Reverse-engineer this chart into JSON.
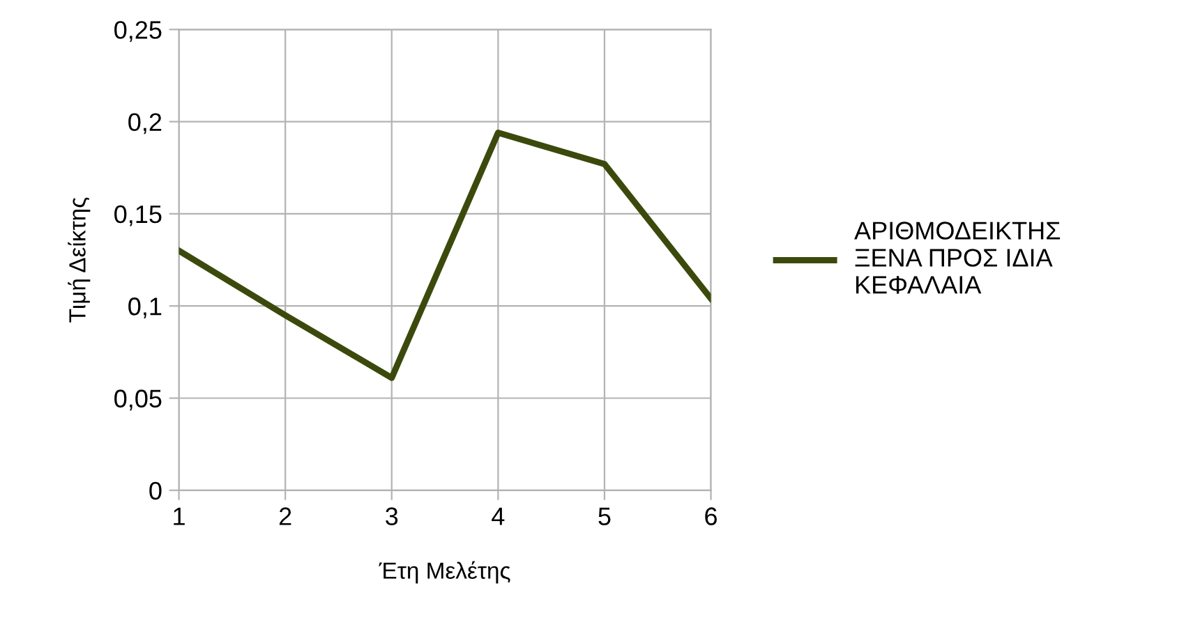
{
  "chart_data": {
    "type": "line",
    "xlabel": "Έτη Μελέτης",
    "ylabel": "Τιμή Δείκτης",
    "x": [
      1,
      2,
      3,
      4,
      5,
      6
    ],
    "series": [
      {
        "name": "ΑΡΙΘΜΟΔΕΙΚΤΗΣ\nΞΕΝΑ ΠΡΟΣ ΙΔΙΑ\nΚΕΦΑΛΑΙΑ",
        "color": "#3b4a0c",
        "values": [
          0.13,
          0.095,
          0.061,
          0.194,
          0.177,
          0.104
        ]
      }
    ],
    "xlim": [
      1,
      6
    ],
    "xticks": [
      1,
      2,
      3,
      4,
      5,
      6
    ],
    "ylim": [
      0,
      0.25
    ],
    "yticks": [
      {
        "value": 0,
        "label": "0"
      },
      {
        "value": 0.05,
        "label": "0,05"
      },
      {
        "value": 0.1,
        "label": "0,1"
      },
      {
        "value": 0.15,
        "label": "0,15"
      },
      {
        "value": 0.2,
        "label": "0,2"
      },
      {
        "value": 0.25,
        "label": "0,25"
      }
    ],
    "grid": true,
    "legend": "right",
    "marker": "none",
    "line_style": "solid"
  }
}
